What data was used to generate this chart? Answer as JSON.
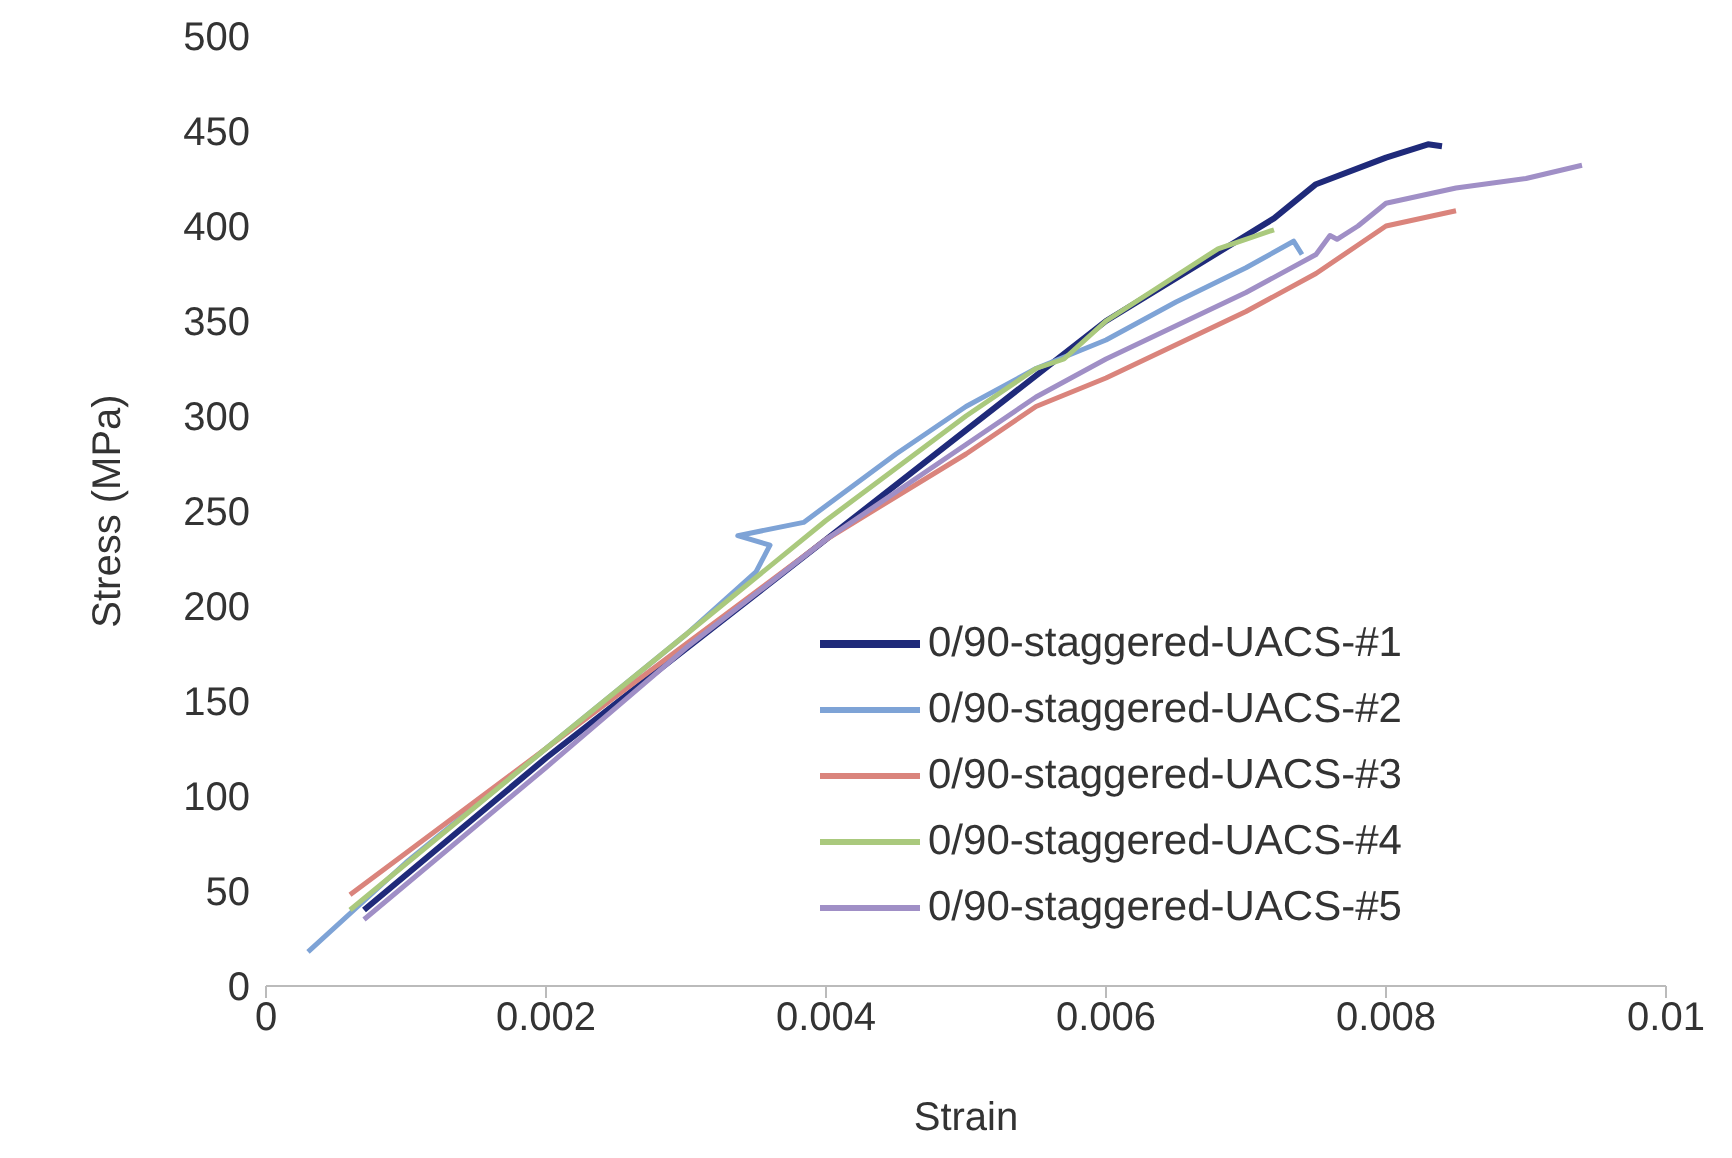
{
  "chart_data": {
    "type": "line",
    "xlabel": "Strain",
    "ylabel": "Stress (MPa)",
    "xlim": [
      0,
      0.01
    ],
    "xticks": [
      0,
      0.002,
      0.004,
      0.006,
      0.008,
      0.01
    ],
    "ylim": [
      0,
      500
    ],
    "yticks": [
      0,
      50,
      100,
      150,
      200,
      250,
      300,
      350,
      400,
      450,
      500
    ],
    "grid": false,
    "legend": "bottom right",
    "marker": "none",
    "line_style": "solid",
    "series": [
      {
        "name": "0/90-staggered-UACS-#1",
        "color": "#1f2a7a",
        "x": [
          0.0007,
          0.002,
          0.004,
          0.006,
          0.007,
          0.0072,
          0.0075,
          0.008,
          0.0083,
          0.0084
        ],
        "values": [
          40,
          120,
          235,
          350,
          395,
          404,
          422,
          436,
          443,
          442
        ]
      },
      {
        "name": "0/90-staggered-UACS-#2",
        "color": "#7ea3d6",
        "x": [
          0.0003,
          0.001,
          0.002,
          0.003,
          0.0035,
          0.0036,
          0.00337,
          0.00384,
          0.0045,
          0.005,
          0.0055,
          0.006,
          0.0065,
          0.007,
          0.00734,
          0.0074
        ],
        "values": [
          18,
          65,
          125,
          185,
          218,
          232,
          237,
          244,
          280,
          305,
          325,
          340,
          360,
          378,
          392,
          385
        ]
      },
      {
        "name": "0/90-staggered-UACS-#3",
        "color": "#da847c",
        "x": [
          0.0006,
          0.001,
          0.002,
          0.003,
          0.004,
          0.005,
          0.0055,
          0.006,
          0.007,
          0.0075,
          0.0078,
          0.008,
          0.0085
        ],
        "values": [
          48,
          70,
          125,
          180,
          235,
          280,
          305,
          320,
          355,
          375,
          390,
          400,
          408
        ]
      },
      {
        "name": "0/90-staggered-UACS-#4",
        "color": "#aac97d",
        "x": [
          0.0006,
          0.002,
          0.003,
          0.004,
          0.005,
          0.0055,
          0.0057,
          0.006,
          0.0068,
          0.0072
        ],
        "values": [
          40,
          125,
          185,
          245,
          300,
          325,
          330,
          350,
          388,
          398
        ]
      },
      {
        "name": "0/90-staggered-UACS-#5",
        "color": "#a08fc6",
        "x": [
          0.0007,
          0.002,
          0.003,
          0.004,
          0.005,
          0.0055,
          0.006,
          0.007,
          0.0075,
          0.0076,
          0.00765,
          0.0078,
          0.008,
          0.0085,
          0.009,
          0.0094
        ],
        "values": [
          35,
          115,
          178,
          235,
          285,
          310,
          330,
          365,
          385,
          395,
          393,
          400,
          412,
          420,
          425,
          432
        ]
      }
    ]
  }
}
